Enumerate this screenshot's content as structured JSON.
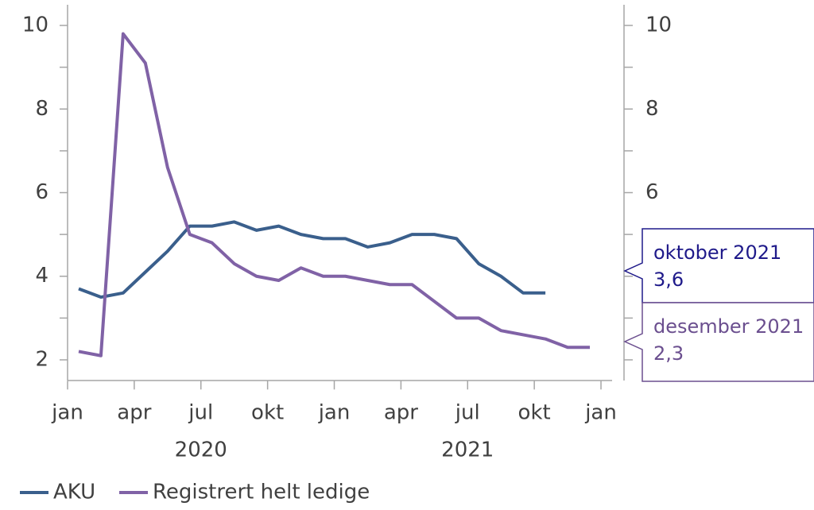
{
  "chart_data": {
    "type": "line",
    "x": [
      0.5,
      1.5,
      2.5,
      3.5,
      4.5,
      5.5,
      6.5,
      7.5,
      8.5,
      9.5,
      10.5,
      11.5,
      12.5,
      13.5,
      14.5,
      15.5,
      16.5,
      17.5,
      18.5,
      19.5,
      20.5,
      21.5,
      22.5,
      23.5
    ],
    "xlim": [
      0,
      24.5
    ],
    "xticks": [
      {
        "value": 0,
        "label": "jan"
      },
      {
        "value": 3,
        "label": "apr"
      },
      {
        "value": 6,
        "label": "jul"
      },
      {
        "value": 9,
        "label": "okt"
      },
      {
        "value": 12,
        "label": "jan"
      },
      {
        "value": 15,
        "label": "apr"
      },
      {
        "value": 18,
        "label": "jul"
      },
      {
        "value": 21,
        "label": "okt"
      },
      {
        "value": 24,
        "label": "jan"
      }
    ],
    "year_labels": [
      {
        "value": 6,
        "label": "2020"
      },
      {
        "value": 18,
        "label": "2021"
      }
    ],
    "ylim": [
      1.5,
      10.5
    ],
    "yticks": [
      2,
      4,
      6,
      8,
      10
    ],
    "yminor_ticks": [
      3,
      5,
      7,
      9
    ],
    "y2lim": [
      1.5,
      10.5
    ],
    "y2ticks": [
      2,
      4,
      6,
      8,
      10
    ],
    "series": [
      {
        "name": "AKU",
        "color": "#3a5f8c",
        "values": [
          3.7,
          3.5,
          3.6,
          4.1,
          4.6,
          5.2,
          5.2,
          5.3,
          5.1,
          5.2,
          5.0,
          4.9,
          4.9,
          4.7,
          4.8,
          5.0,
          5.0,
          4.9,
          4.3,
          4.0,
          3.6,
          3.6,
          null,
          null
        ]
      },
      {
        "name": "Registrert helt ledige",
        "color": "#8062a6",
        "values": [
          2.2,
          2.1,
          9.8,
          9.1,
          6.6,
          5.0,
          4.8,
          4.3,
          4.0,
          3.9,
          4.2,
          4.0,
          4.0,
          3.9,
          3.8,
          3.8,
          3.4,
          3.0,
          3.0,
          2.7,
          2.6,
          2.5,
          2.3,
          2.3
        ]
      }
    ],
    "annotations": [
      {
        "lines": [
          "oktober 2021",
          "3,6"
        ],
        "color": "#1f1a8a"
      },
      {
        "lines": [
          "desember 2021",
          "2,3"
        ],
        "color": "#6b4f8f"
      }
    ]
  }
}
